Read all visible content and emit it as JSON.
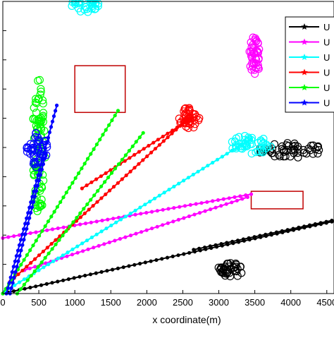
{
  "chart_data": {
    "type": "scatter",
    "xlabel": "x coordinate(m)",
    "ylabel": "",
    "xlim": [
      0,
      4600
    ],
    "ylim": [
      0,
      5000
    ],
    "x_ticks": [
      0,
      500,
      1000,
      1500,
      2000,
      2500,
      3000,
      3500,
      4000,
      4500
    ],
    "x_tick_labels": [
      "0",
      "500",
      "1000",
      "1500",
      "2000",
      "2500",
      "3000",
      "3500",
      "4000",
      "4500"
    ],
    "y_ticks": [
      0,
      500,
      1000,
      1500,
      2000,
      2500,
      3000,
      3500,
      4000,
      4500,
      5000
    ],
    "grid": false,
    "legend": {
      "placement": "top-right",
      "entries": [
        {
          "label": "U",
          "color": "#000000",
          "marker": "*"
        },
        {
          "label": "U",
          "color": "#ff00ff",
          "marker": "*"
        },
        {
          "label": "U",
          "color": "#00ffff",
          "marker": "*"
        },
        {
          "label": "U",
          "color": "#ff0000",
          "marker": "*"
        },
        {
          "label": "U",
          "color": "#00ff00",
          "marker": "*"
        },
        {
          "label": "U",
          "color": "#0000ff",
          "marker": "*"
        }
      ]
    },
    "obstacles": [
      {
        "x": [
          1000,
          1700
        ],
        "y": [
          3100,
          3900
        ],
        "color": "#c00000"
      },
      {
        "x": [
          3450,
          4170
        ],
        "y": [
          1450,
          1750
        ],
        "color": "#c00000"
      }
    ],
    "series": [
      {
        "color": "#000000",
        "trajectories": [
          {
            "x": [
              0,
              4570
            ],
            "y": [
              0,
              1230
            ]
          },
          {
            "x": [
              2650,
              4570
            ],
            "y": [
              750,
              1250
            ]
          }
        ],
        "cluster": {
          "x": 3150,
          "y": 400,
          "rx": 180,
          "ry": 130
        },
        "circle_cluster": {
          "x": 4000,
          "y": 2450,
          "rx": 450,
          "ry": 130
        }
      },
      {
        "color": "#ff00ff",
        "trajectories": [
          {
            "x": [
              0,
              3450
            ],
            "y": [
              950,
              1700
            ]
          },
          {
            "x": [
              300,
              3400
            ],
            "y": [
              400,
              1650
            ]
          }
        ],
        "cluster": {
          "x": 3500,
          "y": 4070,
          "rx": 75,
          "ry": 350
        }
      },
      {
        "color": "#00ffff",
        "trajectories": [
          {
            "x": [
              30,
              3450
            ],
            "y": [
              40,
              2650
            ]
          }
        ],
        "cluster": {
          "x": 3450,
          "y": 2550,
          "rx": 300,
          "ry": 160
        },
        "circle_cluster": {
          "x": 1150,
          "y": 4950,
          "rx": 200,
          "ry": 160
        }
      },
      {
        "color": "#ff0000",
        "trajectories": [
          {
            "x": [
              100,
              2580
            ],
            "y": [
              200,
              3000
            ]
          },
          {
            "x": [
              1100,
              2620
            ],
            "y": [
              1800,
              3000
            ]
          }
        ],
        "cluster": {
          "x": 2580,
          "y": 3000,
          "rx": 150,
          "ry": 180
        }
      },
      {
        "color": "#00ff00",
        "trajectories": [
          {
            "x": [
              0,
              1600
            ],
            "y": [
              0,
              3130
            ]
          },
          {
            "x": [
              200,
              1950
            ],
            "y": [
              0,
              2750
            ]
          }
        ],
        "cluster": {
          "x": 500,
          "y": 2500,
          "rx": 90,
          "ry": 1200
        }
      },
      {
        "color": "#0000ff",
        "trajectories": [
          {
            "x": [
              50,
              750
            ],
            "y": [
              0,
              3220
            ]
          },
          {
            "x": [
              100,
              600
            ],
            "y": [
              0,
              2400
            ]
          }
        ],
        "cluster": {
          "x": 480,
          "y": 2450,
          "rx": 150,
          "ry": 300
        }
      }
    ]
  }
}
